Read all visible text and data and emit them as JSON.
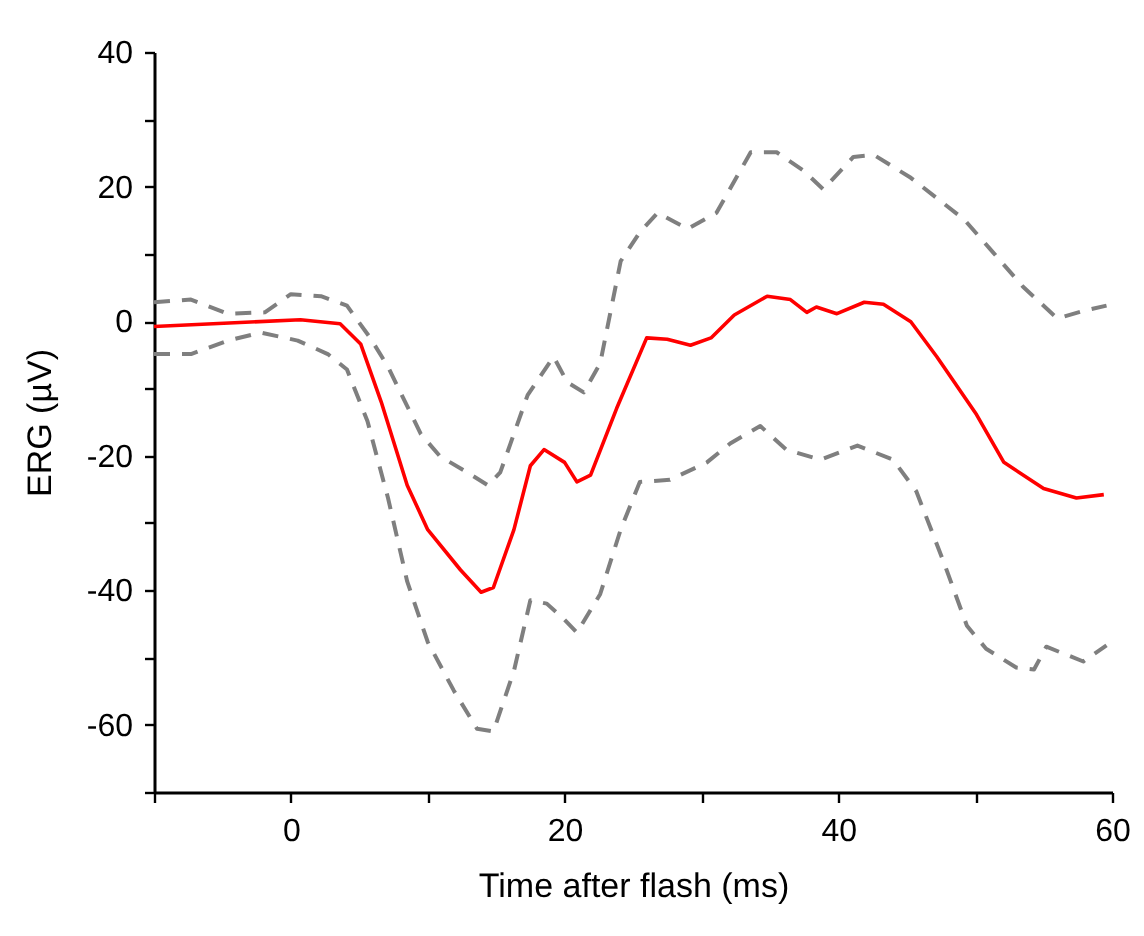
{
  "chart_data": {
    "type": "line",
    "xlabel": "Time after flash (ms)",
    "ylabel": "ERG (µV)",
    "xlim": [
      -10,
      60
    ],
    "ylim": [
      -70,
      40
    ],
    "xticks": [
      {
        "value": -10,
        "label": null
      },
      0,
      {
        "value": 10,
        "label": null
      },
      20,
      {
        "value": 30,
        "label": null
      },
      40,
      {
        "value": 50,
        "label": null
      },
      60
    ],
    "yticks": [
      {
        "value": -70,
        "label": null
      },
      -60,
      {
        "value": -50,
        "label": null
      },
      -40,
      {
        "value": -30,
        "label": null
      },
      -20,
      {
        "value": -10,
        "label": null
      },
      0,
      {
        "value": 10,
        "label": null
      },
      20,
      {
        "value": 30,
        "label": null
      },
      40
    ],
    "grid": false,
    "legend": false,
    "marker": "none",
    "series": [
      {
        "color": "#7f7f7f",
        "line_style": "dashed",
        "x": [
          -10,
          -7.3,
          -4.6,
          -1.9,
          0,
          2.2,
          4.1,
          5.8,
          7.1,
          9.5,
          10.9,
          12.9,
          14.4,
          15.3,
          17.3,
          19.2,
          20.2,
          21.4,
          22.6,
          24.1,
          25.5,
          26.8,
          29,
          31.1,
          33.6,
          35.5,
          37.5,
          38.9,
          41.1,
          42.6,
          45.3,
          49.2,
          51.1,
          53.5,
          56,
          57.9,
          59.6
        ],
        "values": [
          2.8,
          3.2,
          1.1,
          1.3,
          4,
          3.7,
          2.3,
          -2.5,
          -6.8,
          -16.8,
          -20.1,
          -22.5,
          -24.4,
          -22.5,
          -11,
          -5.3,
          -9.1,
          -10.6,
          -6.3,
          8.9,
          13.2,
          16.1,
          13.7,
          16.1,
          25.1,
          25.1,
          22.3,
          19.6,
          24.4,
          24.7,
          21.3,
          15.1,
          10.7,
          5.1,
          0.4,
          1.5,
          2.3
        ]
      },
      {
        "color": "#ff0000",
        "line_style": "solid",
        "x": [
          -10,
          0.7,
          3.6,
          5.1,
          6.6,
          8.5,
          10,
          12.4,
          13.9,
          14.8,
          16.3,
          17.5,
          18.5,
          20,
          20.9,
          21.9,
          23.8,
          26,
          27.5,
          29.2,
          30.7,
          32.4,
          34.8,
          36.5,
          37.7,
          38.4,
          39.9,
          41.9,
          43.3,
          45.3,
          47.2,
          50.1,
          52.1,
          55,
          57.4,
          59.4
        ],
        "values": [
          -0.8,
          0.2,
          -0.4,
          -3.4,
          -12,
          -24.4,
          -31,
          -37,
          -40.3,
          -39.6,
          -31,
          -21.5,
          -19.1,
          -21,
          -23.9,
          -22.9,
          -13,
          -2.5,
          -2.7,
          -3.6,
          -2.5,
          0.9,
          3.7,
          3.2,
          1.3,
          2.1,
          1.1,
          2.8,
          2.5,
          -0.1,
          -5.3,
          -13.9,
          -21,
          -24.9,
          -26.3,
          -25.8
        ]
      },
      {
        "color": "#7f7f7f",
        "line_style": "dashed",
        "x": [
          -10,
          -7.3,
          -4.6,
          -2.2,
          0.5,
          2.7,
          4.1,
          5.6,
          7.1,
          8.5,
          10,
          11.9,
          13.6,
          14.8,
          16.3,
          17.5,
          18.7,
          20,
          20.9,
          22.6,
          24.1,
          25.5,
          27.7,
          30.4,
          32.1,
          34.3,
          36.2,
          38.7,
          41.4,
          44,
          45.7,
          47.7,
          49.4,
          50.8,
          53,
          54.3,
          55.2,
          57.9,
          59.6
        ],
        "values": [
          -4.9,
          -4.9,
          -2.9,
          -1.7,
          -2.9,
          -4.9,
          -7.2,
          -14.9,
          -26.3,
          -38.7,
          -47.7,
          -54.9,
          -60.6,
          -61,
          -52,
          -41.5,
          -42,
          -44.4,
          -46.3,
          -40.6,
          -31,
          -23.9,
          -23.6,
          -21,
          -18.2,
          -15.6,
          -19.1,
          -20.6,
          -18.5,
          -20.6,
          -25.3,
          -35.8,
          -45.3,
          -48.7,
          -51.5,
          -51.8,
          -48.4,
          -50.6,
          -48.2
        ]
      }
    ]
  }
}
